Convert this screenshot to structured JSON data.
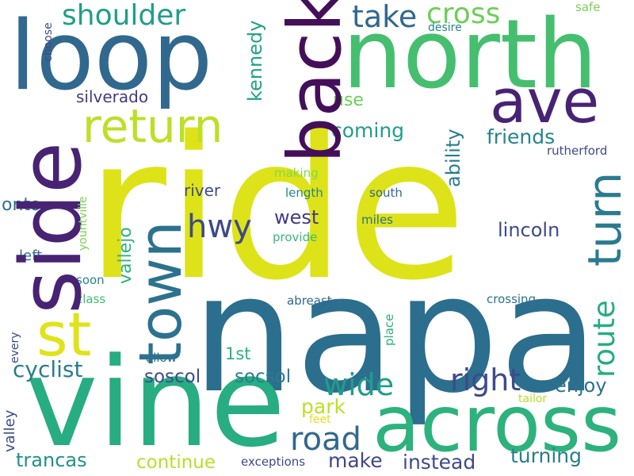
{
  "words": {
    "ride": "ride",
    "napa": "napa",
    "vine": "vine",
    "north": "north",
    "loop": "loop",
    "side": "side",
    "across": "across",
    "back": "back",
    "ave": "ave",
    "town": "town",
    "return": "return",
    "st": "st",
    "turn": "turn",
    "shoulder": "shoulder",
    "take": "take",
    "cross": "cross",
    "hwy": "hwy",
    "road": "road",
    "wide": "wide",
    "right": "right",
    "route": "route",
    "cyclist": "cyclist",
    "instead": "instead",
    "turning": "turning",
    "continue": "continue",
    "trancas": "trancas",
    "make": "make",
    "enjoy": "enjoy",
    "park": "park",
    "soscol": "soscol",
    "socsol": "socsol",
    "west": "west",
    "lincoln": "lincoln",
    "river": "river",
    "friends": "friends",
    "coming": "coming",
    "kennedy": "kennedy",
    "silverado": "silverado",
    "ability": "ability",
    "vallejo": "vallejo",
    "onto": "onto",
    "use": "use",
    "1st": "1st",
    "left": "left",
    "valley": "valley",
    "exceptions": "exceptions",
    "rutherford": "rutherford",
    "south": "south",
    "miles": "miles",
    "length": "length",
    "making": "making",
    "provide": "provide",
    "yountville": "yountville",
    "soon": "soon",
    "class": "class",
    "abreast": "abreast",
    "crossing": "crossing",
    "place": "place",
    "allow": "allow",
    "every": "every",
    "choose": "choose",
    "desire": "desire",
    "safe": "safe",
    "tailor": "tailor",
    "feet": "feet"
  },
  "colors": {
    "dark_purple": "#482374",
    "indigo": "#3f3e86",
    "blue": "#31688e",
    "teal": "#21908c",
    "green_teal": "#23a883",
    "green": "#45bf6f",
    "light_green": "#7ad151",
    "yellow_green": "#bddf26",
    "yellow": "#dde318"
  }
}
